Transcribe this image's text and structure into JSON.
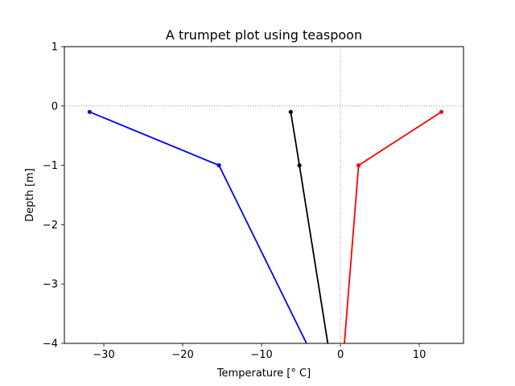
{
  "chart_data": {
    "type": "line",
    "title": "A trumpet plot using teaspoon",
    "xlabel": "Temperature [° C]",
    "ylabel": "Depth [m]",
    "xlim": [
      -35,
      15.6
    ],
    "ylim": [
      -4,
      1
    ],
    "xticks": [
      -30,
      -20,
      -10,
      0,
      10
    ],
    "yticks": [
      1,
      0,
      -1,
      -2,
      -3,
      -4
    ],
    "xtick_labels": [
      "−30",
      "−20",
      "−10",
      "0",
      "10"
    ],
    "ytick_labels": [
      "1",
      "0",
      "−1",
      "−2",
      "−3",
      "−4"
    ],
    "grid": false,
    "reference_lines": {
      "x": 0,
      "y": 0,
      "style": "dotted",
      "color": "#808080"
    },
    "series": [
      {
        "color": "#0000ff",
        "marker": "dot",
        "points": [
          [
            -31.8,
            -0.1
          ],
          [
            -15.4,
            -1.0
          ],
          [
            -4.3,
            -4.0
          ]
        ]
      },
      {
        "color": "#000000",
        "marker": "dot",
        "points": [
          [
            -6.3,
            -0.1
          ],
          [
            -5.2,
            -1.0
          ],
          [
            -1.6,
            -4.0
          ]
        ]
      },
      {
        "color": "#ff0000",
        "marker": "dot",
        "points": [
          [
            12.8,
            -0.1
          ],
          [
            2.3,
            -1.0
          ],
          [
            0.5,
            -4.0
          ]
        ]
      }
    ]
  }
}
